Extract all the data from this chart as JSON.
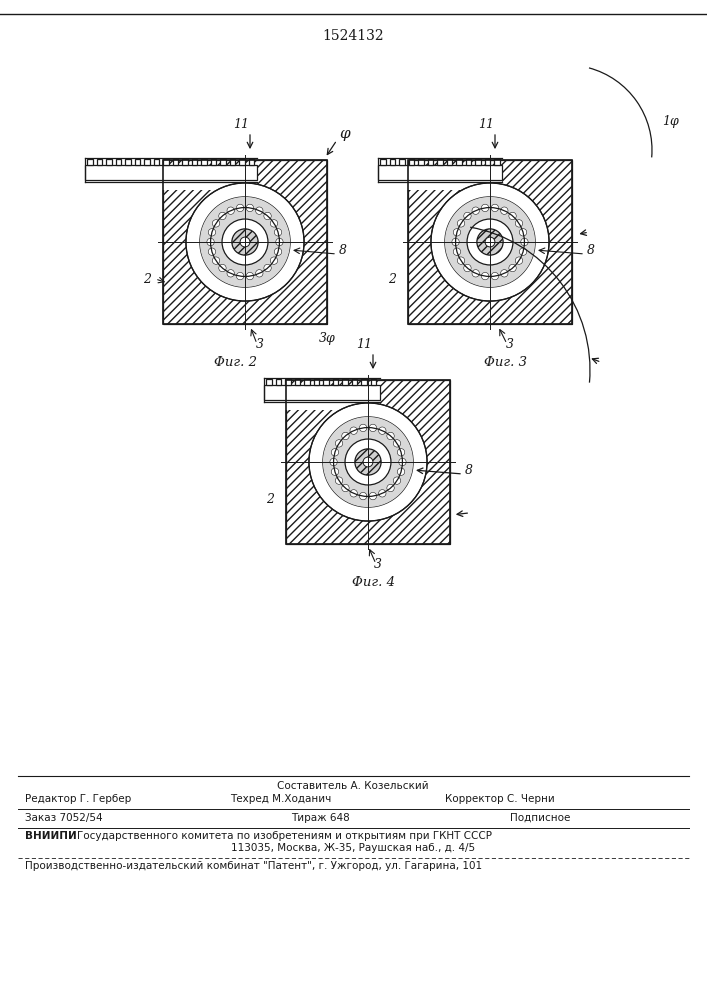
{
  "patent_number": "1524132",
  "fig2_label": "Φиг. 2",
  "fig3_label": "Φиг. 3",
  "fig4_label": "Φиг. 4",
  "bg_color": "#ffffff",
  "dark": "#1a1a1a",
  "footer_editor": "Редактор Г. Гербер",
  "footer_composer": "Составитель А. Козельский",
  "footer_techred": "Техред М.Ходанич",
  "footer_corrector": "Корректор С. Черни",
  "footer_order": "Заказ 7052/54",
  "footer_tirazh": "Тираж 648",
  "footer_podpisnoe": "Подписное",
  "footer_vniipи": "ВНИИПИ",
  "footer_vniipи_text": "Государственного комитета по изобретениям и открытиям при ГКНТ СССР",
  "footer_address": "113035, Москва, Ж-35, Раушская наб., д. 4/5",
  "footer_kombinat": "Производственно-издательский комбинат \"Патент\", г. Ужгород, ул. Гагарина, 101"
}
